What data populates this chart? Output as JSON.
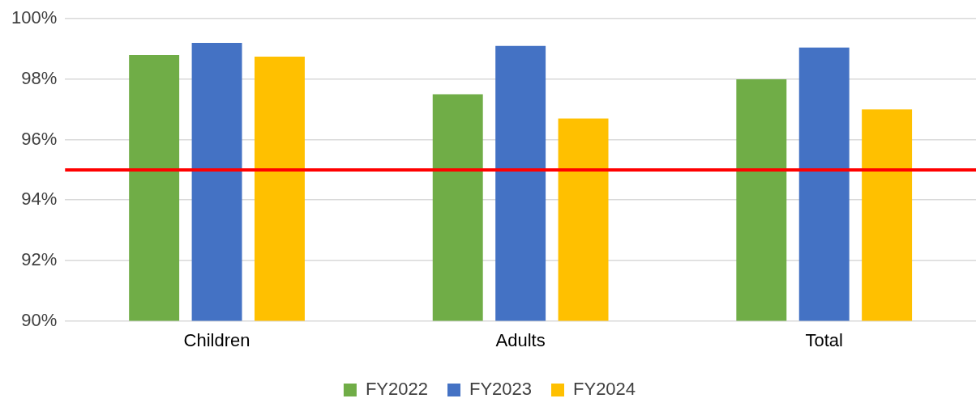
{
  "chart_data": {
    "type": "bar",
    "categories": [
      "Children",
      "Adults",
      "Total"
    ],
    "series": [
      {
        "name": "FY2022",
        "color": "#70ad47",
        "values": [
          98.8,
          97.5,
          98.0
        ]
      },
      {
        "name": "FY2023",
        "color": "#4472c4",
        "values": [
          99.2,
          99.1,
          99.05
        ]
      },
      {
        "name": "FY2024",
        "color": "#ffc000",
        "values": [
          98.75,
          96.7,
          97.0
        ]
      }
    ],
    "ylim": [
      90,
      100
    ],
    "yticks": [
      {
        "value": 90,
        "label": "90%"
      },
      {
        "value": 92,
        "label": "92%"
      },
      {
        "value": 94,
        "label": "94%"
      },
      {
        "value": 96,
        "label": "96%"
      },
      {
        "value": 98,
        "label": "98%"
      },
      {
        "value": 100,
        "label": "100%"
      }
    ],
    "ref_lines": [
      {
        "axis": "y",
        "value": 95,
        "color": "#ff0000"
      }
    ],
    "grid": "y",
    "legend": "bottom"
  }
}
